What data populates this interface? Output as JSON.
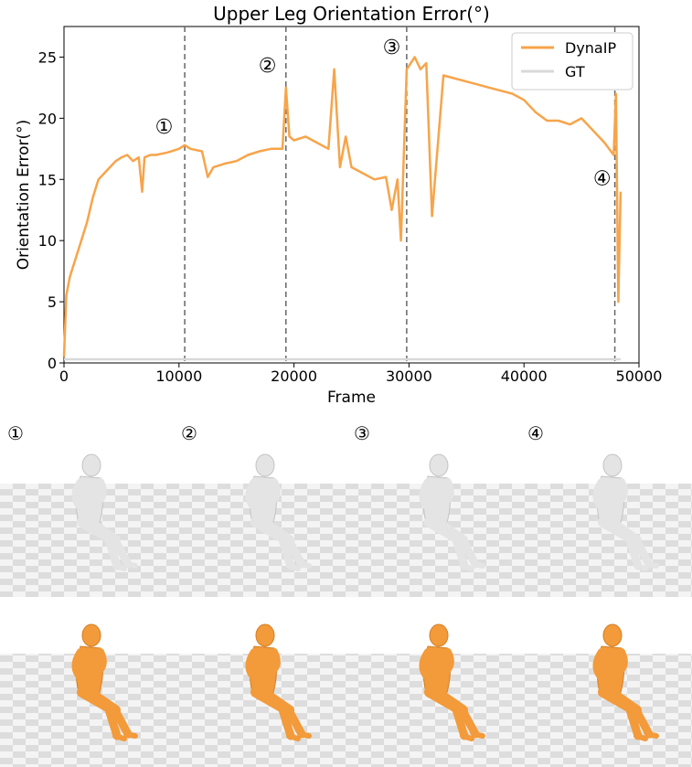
{
  "chart_data": {
    "type": "line",
    "title": "Upper Leg Orientation Error(°)",
    "xlabel": "Frame",
    "ylabel": "Orientation Error(°)",
    "xlim": [
      0,
      50000
    ],
    "ylim": [
      0,
      27.5
    ],
    "xticks": [
      0,
      10000,
      20000,
      30000,
      40000,
      50000
    ],
    "yticks": [
      0,
      5,
      10,
      15,
      20,
      25
    ],
    "legend_position": "top-right",
    "series": [
      {
        "name": "DynaIP",
        "color": "#f7a44a",
        "x": [
          0,
          200,
          500,
          1000,
          1500,
          2000,
          2500,
          3000,
          3500,
          4000,
          4500,
          5000,
          5500,
          6000,
          6500,
          6800,
          7000,
          7500,
          8000,
          9000,
          10000,
          10500,
          11000,
          12000,
          12500,
          13000,
          14000,
          15000,
          16000,
          17000,
          18000,
          19000,
          19300,
          19600,
          20000,
          21000,
          22000,
          23000,
          23500,
          24000,
          24500,
          25000,
          26000,
          27000,
          28000,
          28500,
          29000,
          29300,
          29800,
          30500,
          31000,
          31500,
          32000,
          33000,
          35000,
          37000,
          39000,
          40000,
          41000,
          42000,
          43000,
          44000,
          45000,
          46000,
          47000,
          47800,
          48000,
          48200,
          48400
        ],
        "values": [
          0.5,
          5.5,
          7,
          8.5,
          10,
          11.5,
          13.5,
          15,
          15.5,
          16,
          16.5,
          16.8,
          17,
          16.5,
          16.8,
          14,
          16.8,
          17,
          17,
          17.2,
          17.5,
          17.8,
          17.5,
          17.3,
          15.2,
          16,
          16.3,
          16.5,
          17,
          17.3,
          17.5,
          17.5,
          22.5,
          18.5,
          18.2,
          18.5,
          18,
          17.5,
          24,
          16,
          18.5,
          16,
          15.5,
          15,
          15.2,
          12.5,
          15,
          10,
          24,
          25,
          24,
          24.5,
          12,
          23.5,
          23,
          22.5,
          22,
          21.5,
          20.5,
          19.8,
          19.8,
          19.5,
          20,
          19,
          18,
          17,
          22,
          5,
          14
        ]
      },
      {
        "name": "GT",
        "color": "#d9d9d9",
        "x": [
          0,
          48400
        ],
        "values": [
          0.3,
          0.3
        ]
      }
    ],
    "vlines": [
      10500,
      19300,
      29800,
      47900
    ],
    "annotations": [
      {
        "label": "①",
        "x": 8700,
        "y": 19.2
      },
      {
        "label": "②",
        "x": 17700,
        "y": 24.2
      },
      {
        "label": "③",
        "x": 28500,
        "y": 25.7
      },
      {
        "label": "④",
        "x": 46800,
        "y": 15.0
      }
    ]
  },
  "render_panels": {
    "labels": [
      "①",
      "②",
      "③",
      "④"
    ],
    "prediction_color": "#f39a3a",
    "ground_truth_color": "#e4e4e4"
  }
}
